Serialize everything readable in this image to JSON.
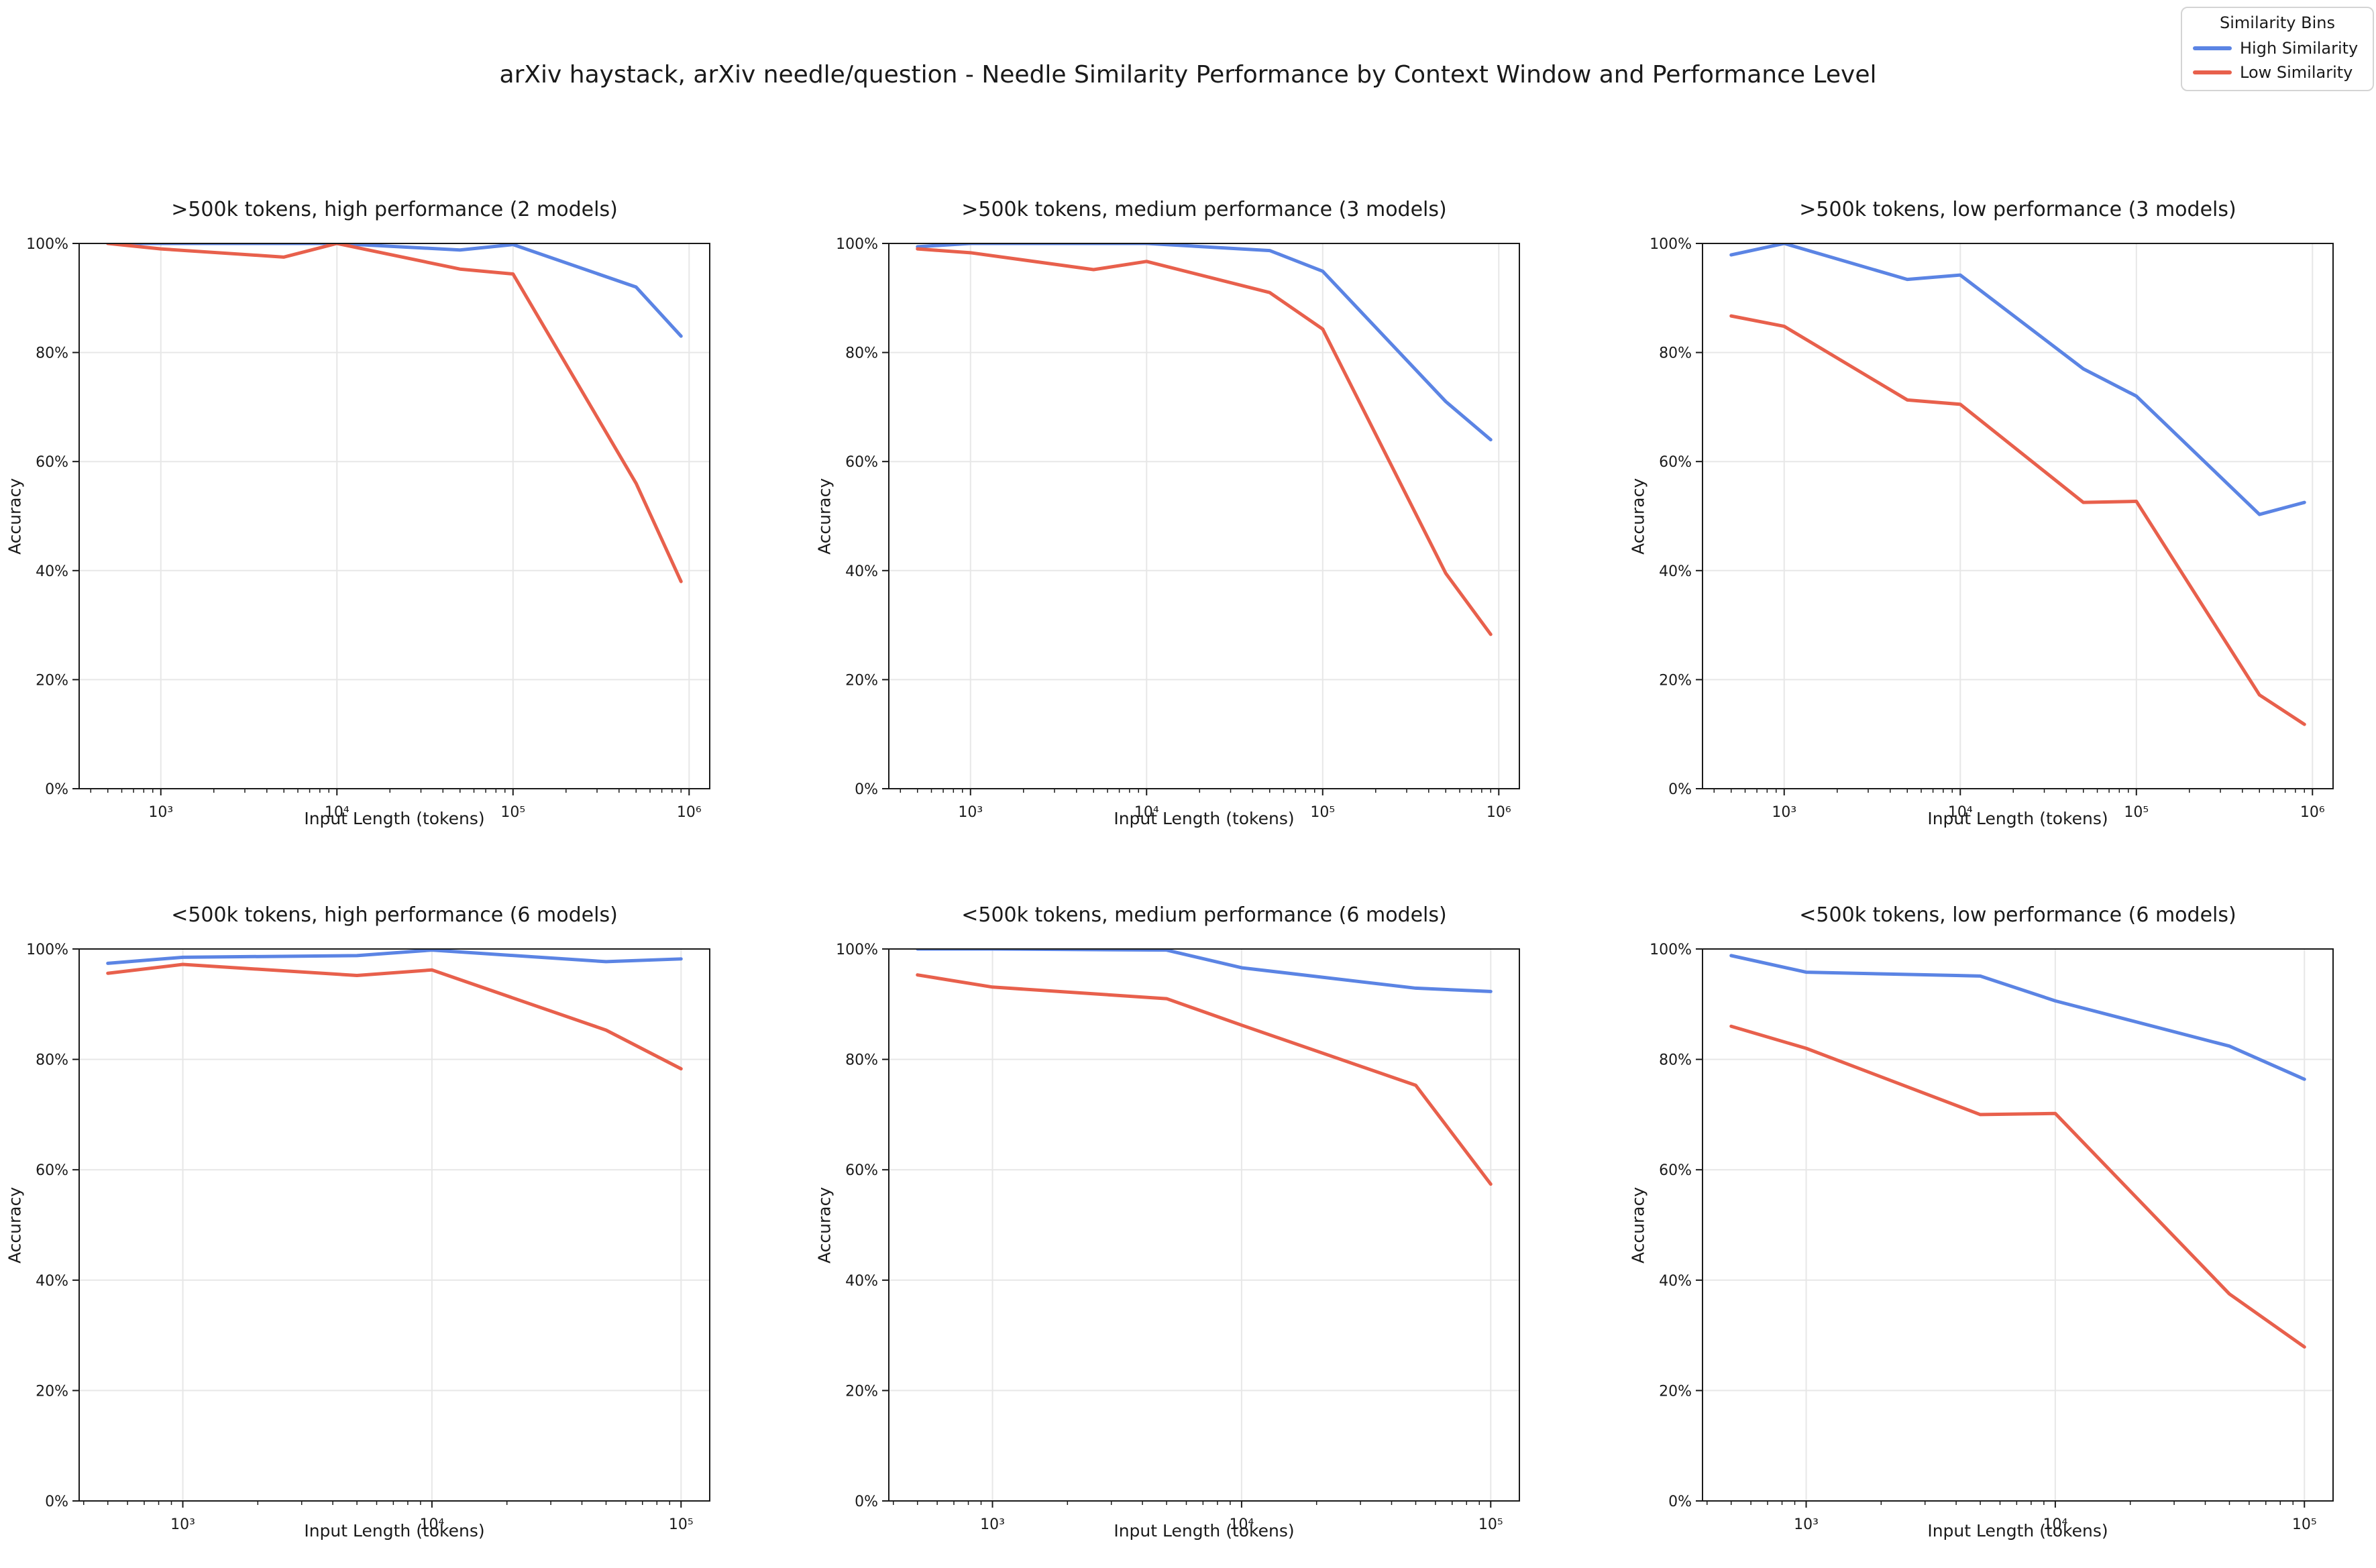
{
  "figure": {
    "title": "arXiv haystack, arXiv needle/question - Needle Similarity Performance by Context Window and Performance Level"
  },
  "legend": {
    "title": "Similarity Bins",
    "entries": [
      {
        "label": "High Similarity",
        "color": "#5b84e4"
      },
      {
        "label": "Low Similarity",
        "color": "#e8604c"
      }
    ]
  },
  "colors": {
    "high": "#5b84e4",
    "low": "#e8604c",
    "grid": "#e7e7e7",
    "spine": "#1a1a1a",
    "text": "#1a1a1a"
  },
  "chart_data": [
    {
      "type": "line",
      "xscale": "log",
      "title": ">500k tokens, high performance (2 models)",
      "xlabel": "Input Length (tokens)",
      "ylabel": "Accuracy",
      "ylim": [
        0,
        100
      ],
      "grid": true,
      "legend_position": "figure-top-right",
      "x": [
        500,
        1000,
        5000,
        10000,
        50000,
        100000,
        500000,
        900000
      ],
      "xticks": [
        {
          "value": 1000,
          "label": "10³"
        },
        {
          "value": 10000,
          "label": "10⁴"
        },
        {
          "value": 100000,
          "label": "10⁵"
        },
        {
          "value": 1000000,
          "label": "10⁶"
        }
      ],
      "yticks": [
        {
          "value": 0,
          "label": "0%"
        },
        {
          "value": 20,
          "label": "20%"
        },
        {
          "value": 40,
          "label": "40%"
        },
        {
          "value": 60,
          "label": "60%"
        },
        {
          "value": 80,
          "label": "80%"
        },
        {
          "value": 100,
          "label": "100%"
        }
      ],
      "series": [
        {
          "name": "High Similarity",
          "color": "#5b84e4",
          "values": [
            100,
            100,
            100,
            100,
            98.8,
            99.8,
            92,
            83
          ]
        },
        {
          "name": "Low Similarity",
          "color": "#e8604c",
          "values": [
            100,
            99,
            97.5,
            100,
            95.3,
            94.4,
            56,
            38
          ]
        }
      ]
    },
    {
      "type": "line",
      "xscale": "log",
      "title": ">500k tokens, medium performance (3 models)",
      "xlabel": "Input Length (tokens)",
      "ylabel": "Accuracy",
      "ylim": [
        0,
        100
      ],
      "grid": true,
      "x": [
        500,
        1000,
        5000,
        10000,
        50000,
        100000,
        500000,
        900000
      ],
      "xticks": [
        {
          "value": 1000,
          "label": "10³"
        },
        {
          "value": 10000,
          "label": "10⁴"
        },
        {
          "value": 100000,
          "label": "10⁵"
        },
        {
          "value": 1000000,
          "label": "10⁶"
        }
      ],
      "yticks": [
        {
          "value": 0,
          "label": "0%"
        },
        {
          "value": 20,
          "label": "20%"
        },
        {
          "value": 40,
          "label": "40%"
        },
        {
          "value": 60,
          "label": "60%"
        },
        {
          "value": 80,
          "label": "80%"
        },
        {
          "value": 100,
          "label": "100%"
        }
      ],
      "series": [
        {
          "name": "High Similarity",
          "color": "#5b84e4",
          "values": [
            99.4,
            100,
            100,
            100,
            98.7,
            94.9,
            71,
            64
          ]
        },
        {
          "name": "Low Similarity",
          "color": "#e8604c",
          "values": [
            99,
            98.3,
            95.2,
            96.7,
            91,
            84.3,
            39.5,
            28.3
          ]
        }
      ]
    },
    {
      "type": "line",
      "xscale": "log",
      "title": ">500k tokens, low performance (3 models)",
      "xlabel": "Input Length (tokens)",
      "ylabel": "Accuracy",
      "ylim": [
        0,
        100
      ],
      "grid": true,
      "x": [
        500,
        1000,
        5000,
        10000,
        50000,
        100000,
        500000,
        900000
      ],
      "xticks": [
        {
          "value": 1000,
          "label": "10³"
        },
        {
          "value": 10000,
          "label": "10⁴"
        },
        {
          "value": 100000,
          "label": "10⁵"
        },
        {
          "value": 1000000,
          "label": "10⁶"
        }
      ],
      "yticks": [
        {
          "value": 0,
          "label": "0%"
        },
        {
          "value": 20,
          "label": "20%"
        },
        {
          "value": 40,
          "label": "40%"
        },
        {
          "value": 60,
          "label": "60%"
        },
        {
          "value": 80,
          "label": "80%"
        },
        {
          "value": 100,
          "label": "100%"
        }
      ],
      "series": [
        {
          "name": "High Similarity",
          "color": "#5b84e4",
          "values": [
            97.9,
            100,
            93.4,
            94.2,
            77,
            72,
            50.3,
            52.5
          ]
        },
        {
          "name": "Low Similarity",
          "color": "#e8604c",
          "values": [
            86.7,
            84.8,
            71.3,
            70.5,
            52.5,
            52.7,
            17.2,
            11.8
          ]
        }
      ]
    },
    {
      "type": "line",
      "xscale": "log",
      "title": "<500k tokens, high performance (6 models)",
      "xlabel": "Input Length (tokens)",
      "ylabel": "Accuracy",
      "ylim": [
        0,
        100
      ],
      "grid": true,
      "x": [
        500,
        1000,
        5000,
        10000,
        50000,
        100000
      ],
      "xticks": [
        {
          "value": 1000,
          "label": "10³"
        },
        {
          "value": 10000,
          "label": "10⁴"
        },
        {
          "value": 100000,
          "label": "10⁵"
        }
      ],
      "yticks": [
        {
          "value": 0,
          "label": "0%"
        },
        {
          "value": 20,
          "label": "20%"
        },
        {
          "value": 40,
          "label": "40%"
        },
        {
          "value": 60,
          "label": "60%"
        },
        {
          "value": 80,
          "label": "80%"
        },
        {
          "value": 100,
          "label": "100%"
        }
      ],
      "series": [
        {
          "name": "High Similarity",
          "color": "#5b84e4",
          "values": [
            97.4,
            98.5,
            98.8,
            99.8,
            97.7,
            98.2
          ]
        },
        {
          "name": "Low Similarity",
          "color": "#e8604c",
          "values": [
            95.6,
            97.2,
            95.2,
            96.2,
            85.3,
            78.3
          ]
        }
      ]
    },
    {
      "type": "line",
      "xscale": "log",
      "title": "<500k tokens, medium performance (6 models)",
      "xlabel": "Input Length (tokens)",
      "ylabel": "Accuracy",
      "ylim": [
        0,
        100
      ],
      "grid": true,
      "x": [
        500,
        1000,
        5000,
        10000,
        50000,
        100000
      ],
      "xticks": [
        {
          "value": 1000,
          "label": "10³"
        },
        {
          "value": 10000,
          "label": "10⁴"
        },
        {
          "value": 100000,
          "label": "10⁵"
        }
      ],
      "yticks": [
        {
          "value": 0,
          "label": "0%"
        },
        {
          "value": 20,
          "label": "20%"
        },
        {
          "value": 40,
          "label": "40%"
        },
        {
          "value": 60,
          "label": "60%"
        },
        {
          "value": 80,
          "label": "80%"
        },
        {
          "value": 100,
          "label": "100%"
        }
      ],
      "series": [
        {
          "name": "High Similarity",
          "color": "#5b84e4",
          "values": [
            100,
            100,
            99.8,
            96.6,
            92.9,
            92.3
          ]
        },
        {
          "name": "Low Similarity",
          "color": "#e8604c",
          "values": [
            95.3,
            93.1,
            91,
            86.2,
            75.3,
            57.4
          ]
        }
      ]
    },
    {
      "type": "line",
      "xscale": "log",
      "title": "<500k tokens, low performance (6 models)",
      "xlabel": "Input Length (tokens)",
      "ylabel": "Accuracy",
      "ylim": [
        0,
        100
      ],
      "grid": true,
      "x": [
        500,
        1000,
        5000,
        10000,
        50000,
        100000
      ],
      "xticks": [
        {
          "value": 1000,
          "label": "10³"
        },
        {
          "value": 10000,
          "label": "10⁴"
        },
        {
          "value": 100000,
          "label": "10⁵"
        }
      ],
      "yticks": [
        {
          "value": 0,
          "label": "0%"
        },
        {
          "value": 20,
          "label": "20%"
        },
        {
          "value": 40,
          "label": "40%"
        },
        {
          "value": 60,
          "label": "60%"
        },
        {
          "value": 80,
          "label": "80%"
        },
        {
          "value": 100,
          "label": "100%"
        }
      ],
      "series": [
        {
          "name": "High Similarity",
          "color": "#5b84e4",
          "values": [
            98.8,
            95.8,
            95.1,
            90.6,
            82.4,
            76.4
          ]
        },
        {
          "name": "Low Similarity",
          "color": "#e8604c",
          "values": [
            86,
            82,
            70,
            70.2,
            37.5,
            27.9
          ]
        }
      ]
    }
  ]
}
